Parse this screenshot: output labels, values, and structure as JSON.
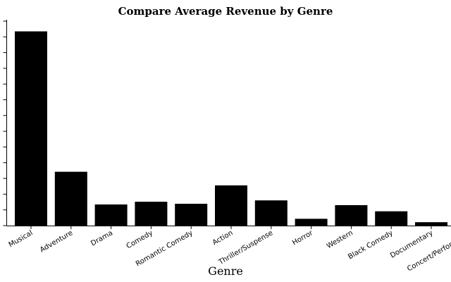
{
  "chart_data": {
    "type": "bar",
    "title": "Compare Average Revenue by Genre",
    "xlabel": "Genre",
    "ylabel": "",
    "categories": [
      "Musical",
      "Adventure",
      "Drama",
      "Comedy",
      "Romantic Comedy",
      "Action",
      "Thriller/Suspense",
      "Horror",
      "Western",
      "Black Comedy",
      "Documentary",
      "Concert/Performance"
    ],
    "values": [
      285,
      79,
      31,
      35,
      32,
      59,
      37,
      10,
      30,
      21,
      5,
      0
    ],
    "ylim": [
      0,
      300
    ],
    "ytick_count": 14,
    "bar_color": "#000000",
    "grid": false,
    "legend": "none"
  }
}
